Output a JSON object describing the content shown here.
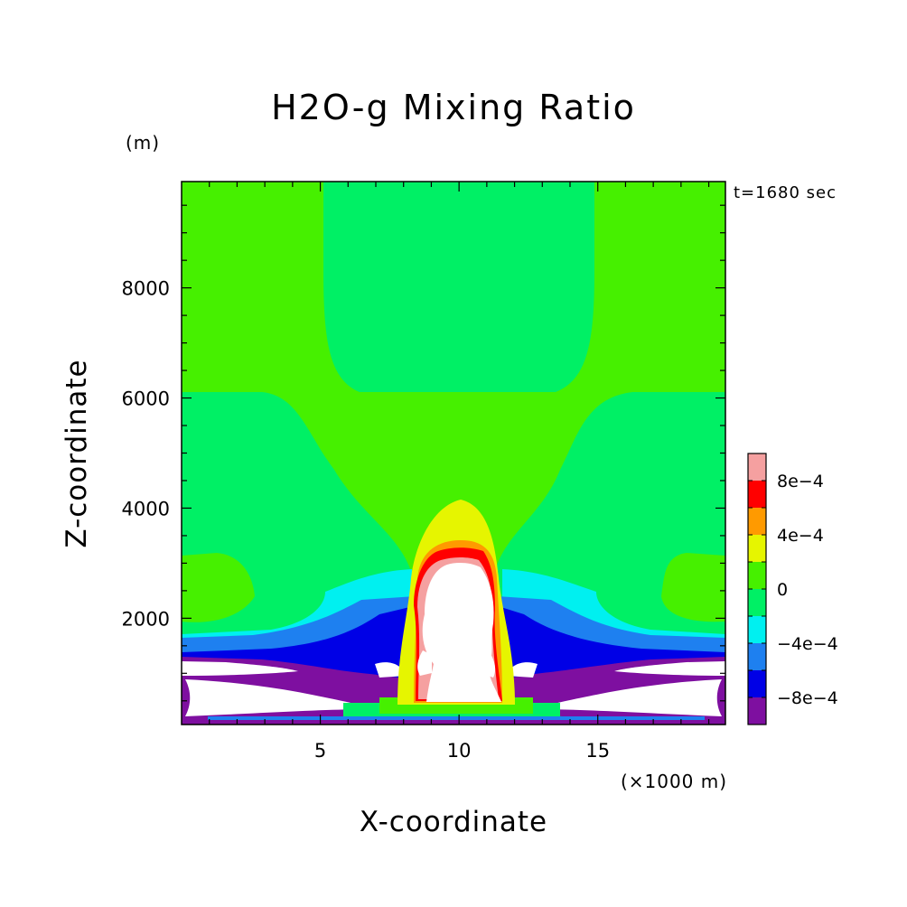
{
  "chart_data": {
    "type": "contour",
    "title": "H2O-g Mixing Ratio",
    "xlabel": "X-coordinate",
    "ylabel": "Z-coordinate",
    "x_unit": "(×1000 m)",
    "y_unit": "(m)",
    "time_label": "t=1680 sec",
    "xlim": [
      0,
      19.6
    ],
    "ylim": [
      70,
      9930
    ],
    "x_ticks": [
      {
        "value": 5,
        "label": "5"
      },
      {
        "value": 10,
        "label": "10"
      },
      {
        "value": 15,
        "label": "15"
      }
    ],
    "y_ticks": [
      {
        "value": 2000,
        "label": "2000"
      },
      {
        "value": 4000,
        "label": "4000"
      },
      {
        "value": 6000,
        "label": "6000"
      },
      {
        "value": 8000,
        "label": "8000"
      }
    ],
    "colorbar": {
      "levels": [
        -0.001,
        -0.0008,
        -0.0006,
        -0.0004,
        -0.0002,
        0,
        0.0002,
        0.0004,
        0.0006,
        0.0008,
        0.001
      ],
      "colors": [
        "#7e0fa0",
        "#0000e6",
        "#1e80f0",
        "#00f0f0",
        "#00f065",
        "#46f000",
        "#e6f500",
        "#ff9a00",
        "#ff0000",
        "#f5a0a0"
      ],
      "tick_labels": [
        {
          "value": -0.0008,
          "label": "−8e−4"
        },
        {
          "value": -0.0004,
          "label": "−4e−4"
        },
        {
          "value": 0,
          "label": "0"
        },
        {
          "value": 0.0004,
          "label": "4e−4"
        },
        {
          "value": 0.0008,
          "label": "8e−4"
        }
      ],
      "out_of_range_color": "#ffffff"
    },
    "features": {
      "background_level": "0 to 2e-4",
      "central_updraft_x": 10.2,
      "central_updraft_top_z": 4150,
      "surface_dry_layer_top_z": 1600
    }
  }
}
